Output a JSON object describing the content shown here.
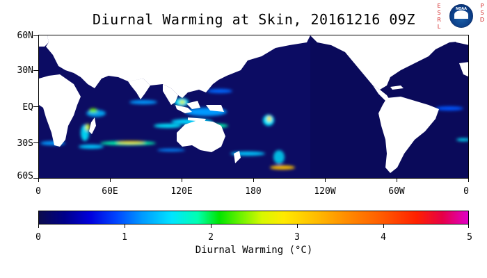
{
  "title": "Diurnal Warming at Skin, 20161216 09Z",
  "logo": {
    "left_letters": "E S R L",
    "right_letters": "P S D",
    "emblem_text": "NOAA"
  },
  "map": {
    "projection": "equirectangular",
    "lon_range": [
      0,
      360
    ],
    "lat_range": [
      -60,
      60
    ],
    "y_ticks": [
      "60N",
      "30N",
      "EQ",
      "30S",
      "60S"
    ],
    "x_ticks": [
      "0",
      "60E",
      "120E",
      "180",
      "120W",
      "60W",
      "0"
    ],
    "land_color": "#ffffff",
    "ocean_base_color": "#0a0a5a",
    "warm_spots_color_scale": "diurnal-warming"
  },
  "colorbar": {
    "title": "Diurnal Warming (°C)",
    "ticks": [
      "0",
      "1",
      "2",
      "3",
      "4",
      "5"
    ],
    "range": [
      0,
      5
    ],
    "colors": [
      "#0b0b4d",
      "#0000dd",
      "#00e5ff",
      "#00e400",
      "#ffea00",
      "#ff8a00",
      "#ff2000",
      "#e000c8"
    ]
  }
}
